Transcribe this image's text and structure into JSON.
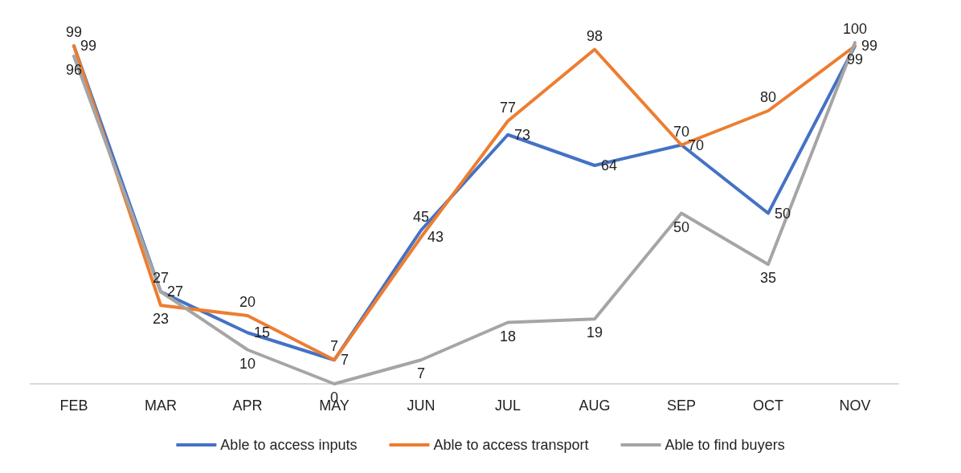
{
  "chart_data": {
    "type": "line",
    "categories": [
      "FEB",
      "MAR",
      "APR",
      "MAY",
      "JUN",
      "JUL",
      "AUG",
      "SEP",
      "OCT",
      "NOV"
    ],
    "series": [
      {
        "name": "Able to access inputs",
        "color": "#4472c4",
        "values": [
          99,
          27,
          15,
          7,
          45,
          73,
          64,
          70,
          50,
          99
        ]
      },
      {
        "name": "Able to access transport",
        "color": "#ed7d31",
        "values": [
          99,
          23,
          20,
          7,
          43,
          77,
          98,
          70,
          80,
          99
        ]
      },
      {
        "name": "Able to find buyers",
        "color": "#a5a5a5",
        "values": [
          96,
          27,
          10,
          0,
          7,
          18,
          19,
          50,
          35,
          100
        ]
      }
    ],
    "data_labels": true,
    "grid": false,
    "legend": "bottom",
    "marker": "none",
    "line_style": "solid"
  }
}
